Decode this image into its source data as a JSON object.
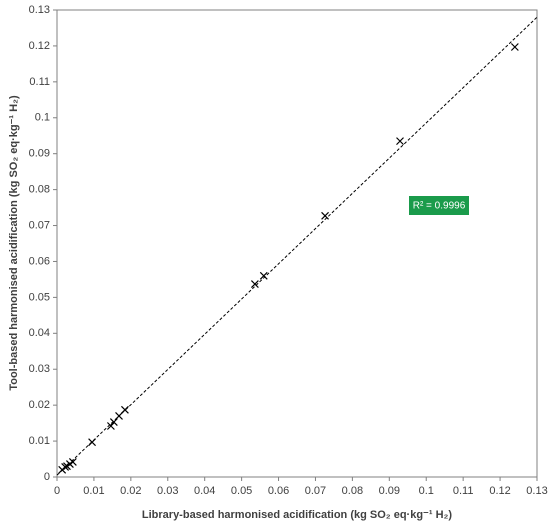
{
  "chart_data": {
    "type": "scatter",
    "x_label": "Library-based harmonised acidification (kg SO₂ eq·kg⁻¹ H₂)",
    "y_label": "Tool-based harmonised acidification (kg SO₂ eq·kg⁻¹ H₂)",
    "x": [
      0.0014,
      0.0022,
      0.0027,
      0.0035,
      0.0043,
      0.0095,
      0.0146,
      0.0154,
      0.0168,
      0.0184,
      0.0536,
      0.056,
      0.0726,
      0.0929,
      0.124
    ],
    "y": [
      0.002,
      0.0028,
      0.003,
      0.0036,
      0.0042,
      0.0097,
      0.0142,
      0.0153,
      0.017,
      0.0187,
      0.0537,
      0.056,
      0.0727,
      0.0935,
      0.1197
    ],
    "color": "#000000",
    "trendline": true,
    "annotation": "R² = 0.9996",
    "annotation_color": "#1a9b4b",
    "xlim": [
      0,
      0.13
    ],
    "xticks": [
      0,
      0.01,
      0.02,
      0.03,
      0.04,
      0.05,
      0.06,
      0.07,
      0.08,
      0.09,
      0.1,
      0.11,
      0.12,
      0.13
    ],
    "ylim": [
      0,
      0.13
    ],
    "yticks": [
      0,
      0.01,
      0.02,
      0.03,
      0.04,
      0.05,
      0.06,
      0.07,
      0.08,
      0.09,
      0.1,
      0.11,
      0.12,
      0.13
    ]
  }
}
